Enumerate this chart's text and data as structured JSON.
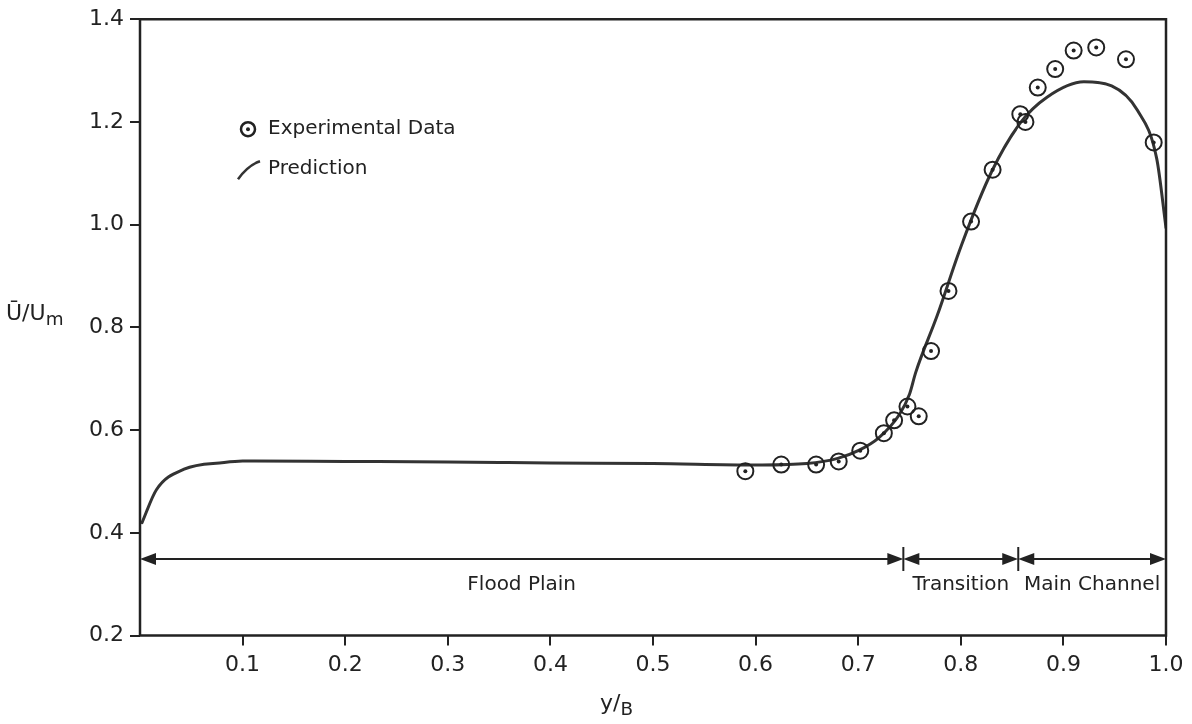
{
  "chart_data": {
    "type": "scatter",
    "xlabel": "y/$_{B}$",
    "ylabel": "Ū/U$_{m}$",
    "xlim": [
      0,
      1.0
    ],
    "ylim": [
      0.2,
      1.4
    ],
    "xticks": [
      0.1,
      0.2,
      0.3,
      0.4,
      0.5,
      0.6,
      0.7,
      0.8,
      0.9,
      {
        "value": 1.0,
        "label": "1.0"
      }
    ],
    "yticks": [
      0.2,
      0.4,
      0.6,
      0.8,
      {
        "value": 1.0,
        "label": "1.0"
      },
      1.2,
      1.4
    ],
    "grid": false,
    "legend": "top left",
    "series": [
      {
        "name": "Experimental Data",
        "type": "scatter",
        "marker": "circle",
        "color": "#222222",
        "x": [
          0.59,
          0.625,
          0.659,
          0.681,
          0.702,
          0.725,
          0.735,
          0.748,
          0.759,
          0.771,
          0.788,
          0.81,
          0.831,
          0.858,
          0.863,
          0.875,
          0.892,
          0.91,
          0.932,
          0.961,
          0.988
        ],
        "values": [
          0.52,
          0.533,
          0.533,
          0.539,
          0.56,
          0.594,
          0.619,
          0.646,
          0.627,
          0.754,
          0.871,
          1.006,
          1.107,
          1.215,
          1.2,
          1.267,
          1.303,
          1.339,
          1.345,
          1.322,
          1.16
        ]
      },
      {
        "name": "Prediction",
        "type": "line",
        "marker": "none",
        "line_style": "solid",
        "color": "#333333",
        "x": [
          0.002,
          0.016,
          0.043,
          0.082,
          0.1,
          0.2,
          0.3,
          0.4,
          0.5,
          0.6,
          0.65,
          0.68,
          0.7,
          0.72,
          0.74,
          0.75,
          0.756,
          0.777,
          0.801,
          0.83,
          0.858,
          0.884,
          0.92,
          0.947,
          0.972,
          0.991,
          1.0
        ],
        "values": [
          0.42,
          0.484,
          0.524,
          0.537,
          0.54,
          0.539,
          0.538,
          0.536,
          0.535,
          0.532,
          0.535,
          0.545,
          0.56,
          0.585,
          0.63,
          0.67,
          0.712,
          0.823,
          0.962,
          1.103,
          1.198,
          1.248,
          1.278,
          1.27,
          1.223,
          1.128,
          0.994
        ]
      }
    ],
    "annotations": [
      "Flood Plain",
      "Transition",
      "Main Channel"
    ]
  }
}
